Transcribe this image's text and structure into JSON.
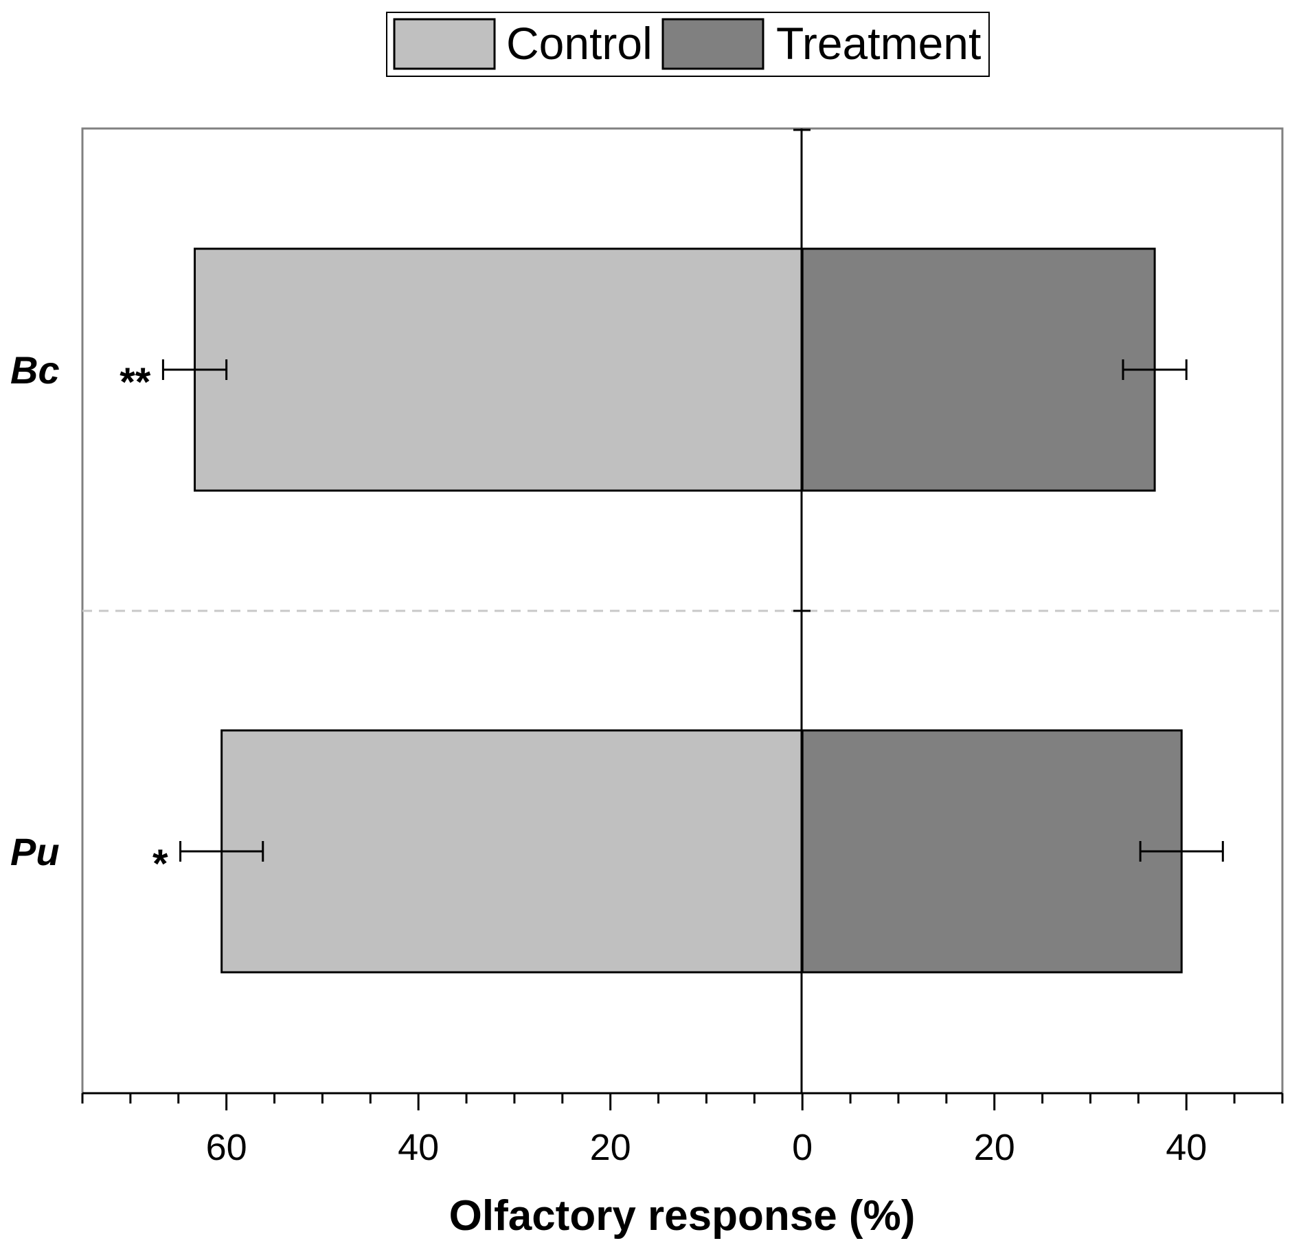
{
  "legend": {
    "control_label": "Control",
    "treatment_label": "Treatment"
  },
  "colors": {
    "control": "#c0c0c0",
    "treatment": "#808080",
    "frame": "#808080",
    "divider": "#c8c8c8",
    "ink": "#000000"
  },
  "chart_data": {
    "type": "bar",
    "orientation": "horizontal-diverging",
    "title": "",
    "xlabel": "Olfactory response (%)",
    "ylabel": "",
    "xlim": [
      -75,
      50
    ],
    "x_ticks": [
      -60,
      -40,
      -20,
      0,
      20,
      40
    ],
    "x_tick_labels": [
      "60",
      "40",
      "20",
      "0",
      "20",
      "40"
    ],
    "categories": [
      "Bc",
      "Pu"
    ],
    "series": [
      {
        "name": "Control",
        "side": "left",
        "values": [
          63.3,
          60.5
        ],
        "errors": [
          3.3,
          4.3
        ]
      },
      {
        "name": "Treatment",
        "side": "right",
        "values": [
          36.7,
          39.5
        ],
        "errors": [
          3.3,
          4.3
        ]
      }
    ],
    "significance": [
      "**",
      "*"
    ],
    "legend_position": "top-center"
  }
}
